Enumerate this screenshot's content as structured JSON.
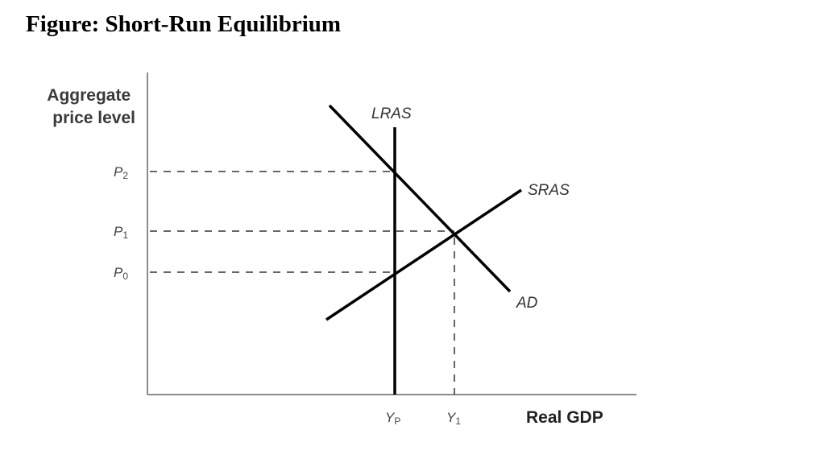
{
  "title": "Figure: Short-Run Equilibrium",
  "axes": {
    "y_label_line1": "Aggregate",
    "y_label_line2": "price level",
    "x_label": "Real GDP"
  },
  "curves": {
    "lras": "LRAS",
    "sras": "SRAS",
    "ad": "AD"
  },
  "price_levels": [
    {
      "base": "P",
      "sub": "2"
    },
    {
      "base": "P",
      "sub": "1"
    },
    {
      "base": "P",
      "sub": "0"
    }
  ],
  "output_levels": [
    {
      "base": "Y",
      "sub": "P"
    },
    {
      "base": "Y",
      "sub": "1"
    }
  ]
}
